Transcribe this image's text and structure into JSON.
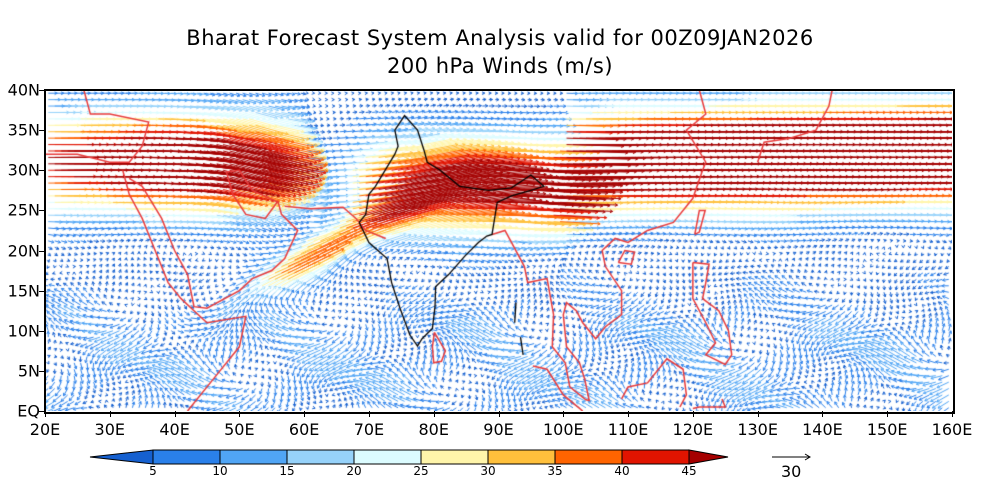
{
  "title": {
    "line1": "Bharat Forecast System Analysis valid for 00Z09JAN2026",
    "line2": "200 hPa Winds (m/s)"
  },
  "axes": {
    "lat_labels": [
      "40N",
      "35N",
      "30N",
      "25N",
      "20N",
      "15N",
      "10N",
      "5N",
      "EQ"
    ],
    "lon_labels": [
      "20E",
      "30E",
      "40E",
      "50E",
      "60E",
      "70E",
      "80E",
      "90E",
      "100E",
      "110E",
      "120E",
      "130E",
      "140E",
      "150E",
      "160E"
    ],
    "lon_range": [
      20,
      160
    ],
    "lat_range": [
      0,
      40
    ]
  },
  "colorbar": {
    "levels": [
      "5",
      "10",
      "15",
      "20",
      "25",
      "30",
      "35",
      "40",
      "45"
    ],
    "colors": [
      "#1560d0",
      "#2a80ea",
      "#50a5f5",
      "#96d2fa",
      "#dcfcff",
      "#fff5aa",
      "#ffc03c",
      "#ff6400",
      "#e11400",
      "#a50000"
    ]
  },
  "reference_vector": {
    "label": "30",
    "value": 30
  },
  "map": {
    "coastline_color": "#e83a3a",
    "india_boundary_color": "#000000",
    "field": "wind vectors colored by speed"
  }
}
